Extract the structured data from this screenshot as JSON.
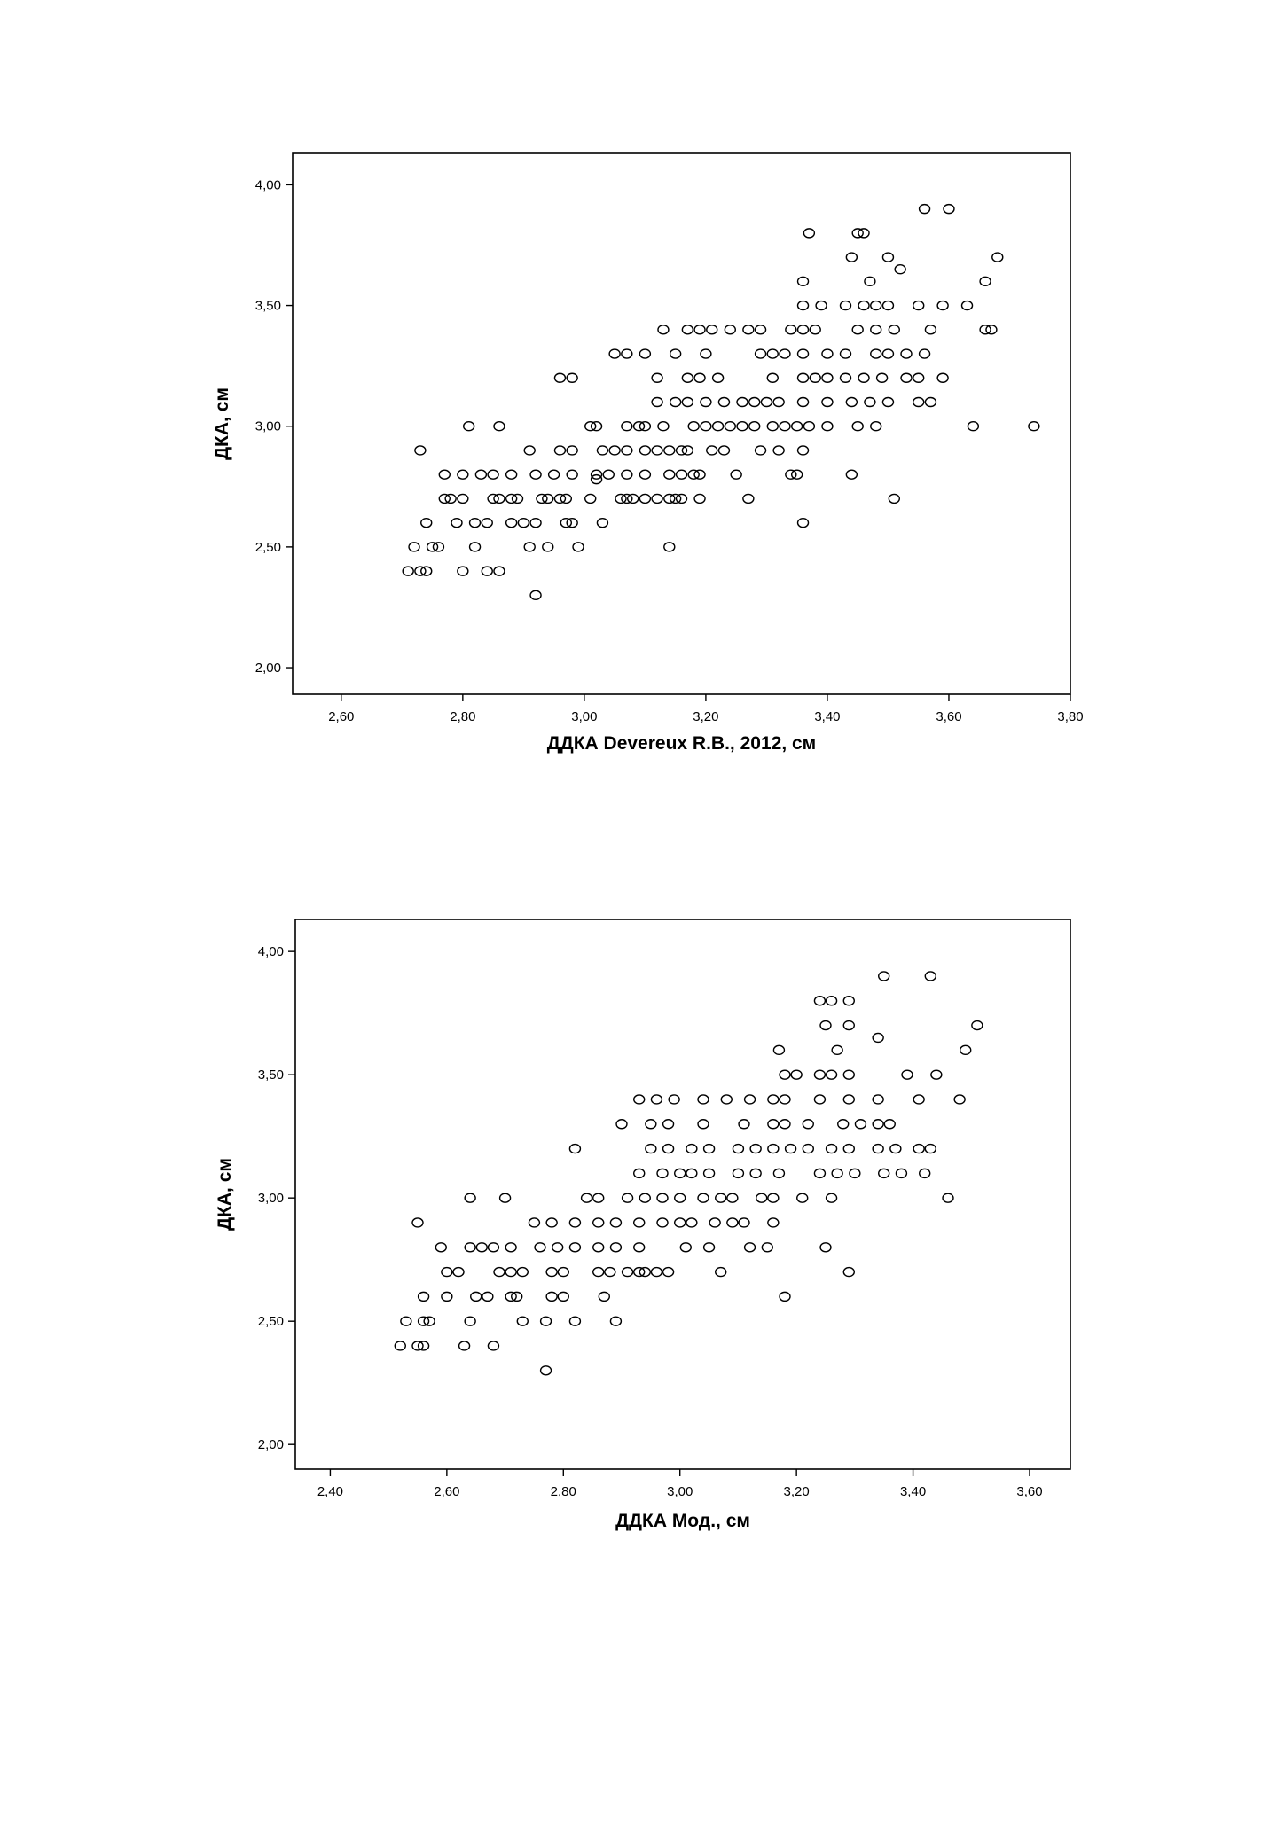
{
  "chart_data": [
    {
      "type": "scatter",
      "title": "",
      "xlabel": "ДДКА Devereux R.B., 2012, см",
      "ylabel": "ДКА, см",
      "xlim": [
        2.52,
        3.8
      ],
      "ylim": [
        1.89,
        4.13
      ],
      "xticks": [
        2.6,
        2.8,
        3.0,
        3.2,
        3.4,
        3.6,
        3.8
      ],
      "xtick_labels": [
        "2,60",
        "2,80",
        "3,00",
        "3,20",
        "3,40",
        "3,60",
        "3,80"
      ],
      "yticks": [
        2.0,
        2.5,
        3.0,
        3.5,
        4.0
      ],
      "ytick_labels": [
        "2,00",
        "2,50",
        "3,00",
        "3,50",
        "4,00"
      ],
      "grid": false,
      "legend": "none",
      "marker": "open-circle",
      "points": [
        [
          2.71,
          2.4
        ],
        [
          2.73,
          2.4
        ],
        [
          2.74,
          2.4
        ],
        [
          2.8,
          2.4
        ],
        [
          2.84,
          2.4
        ],
        [
          2.86,
          2.4
        ],
        [
          2.72,
          2.5
        ],
        [
          2.75,
          2.5
        ],
        [
          2.76,
          2.5
        ],
        [
          2.82,
          2.5
        ],
        [
          2.91,
          2.5
        ],
        [
          2.94,
          2.5
        ],
        [
          2.99,
          2.5
        ],
        [
          3.14,
          2.5
        ],
        [
          2.74,
          2.6
        ],
        [
          2.79,
          2.6
        ],
        [
          2.82,
          2.6
        ],
        [
          2.84,
          2.6
        ],
        [
          2.88,
          2.6
        ],
        [
          2.9,
          2.6
        ],
        [
          2.92,
          2.6
        ],
        [
          2.97,
          2.6
        ],
        [
          2.98,
          2.6
        ],
        [
          3.03,
          2.6
        ],
        [
          3.36,
          2.6
        ],
        [
          2.77,
          2.7
        ],
        [
          2.78,
          2.7
        ],
        [
          2.8,
          2.7
        ],
        [
          2.85,
          2.7
        ],
        [
          2.86,
          2.7
        ],
        [
          2.88,
          2.7
        ],
        [
          2.89,
          2.7
        ],
        [
          2.93,
          2.7
        ],
        [
          2.94,
          2.7
        ],
        [
          2.96,
          2.7
        ],
        [
          2.97,
          2.7
        ],
        [
          3.01,
          2.7
        ],
        [
          3.06,
          2.7
        ],
        [
          3.07,
          2.7
        ],
        [
          3.08,
          2.7
        ],
        [
          3.1,
          2.7
        ],
        [
          3.12,
          2.7
        ],
        [
          3.14,
          2.7
        ],
        [
          3.15,
          2.7
        ],
        [
          3.16,
          2.7
        ],
        [
          3.19,
          2.7
        ],
        [
          3.27,
          2.7
        ],
        [
          3.51,
          2.7
        ],
        [
          2.77,
          2.8
        ],
        [
          2.8,
          2.8
        ],
        [
          2.83,
          2.8
        ],
        [
          2.85,
          2.8
        ],
        [
          2.88,
          2.8
        ],
        [
          2.92,
          2.8
        ],
        [
          2.95,
          2.8
        ],
        [
          2.98,
          2.8
        ],
        [
          3.02,
          2.8
        ],
        [
          3.04,
          2.8
        ],
        [
          3.07,
          2.8
        ],
        [
          3.1,
          2.8
        ],
        [
          3.14,
          2.8
        ],
        [
          3.16,
          2.8
        ],
        [
          3.18,
          2.8
        ],
        [
          3.19,
          2.8
        ],
        [
          3.25,
          2.8
        ],
        [
          3.34,
          2.8
        ],
        [
          3.35,
          2.8
        ],
        [
          3.44,
          2.8
        ],
        [
          2.73,
          2.9
        ],
        [
          2.91,
          2.9
        ],
        [
          2.96,
          2.9
        ],
        [
          2.98,
          2.9
        ],
        [
          3.03,
          2.9
        ],
        [
          3.05,
          2.9
        ],
        [
          3.07,
          2.9
        ],
        [
          3.1,
          2.9
        ],
        [
          3.12,
          2.9
        ],
        [
          3.14,
          2.9
        ],
        [
          3.16,
          2.9
        ],
        [
          3.17,
          2.9
        ],
        [
          3.21,
          2.9
        ],
        [
          3.23,
          2.9
        ],
        [
          3.29,
          2.9
        ],
        [
          3.32,
          2.9
        ],
        [
          3.36,
          2.9
        ],
        [
          2.81,
          3.0
        ],
        [
          2.86,
          3.0
        ],
        [
          3.01,
          3.0
        ],
        [
          3.02,
          3.0
        ],
        [
          3.07,
          3.0
        ],
        [
          3.09,
          3.0
        ],
        [
          3.1,
          3.0
        ],
        [
          3.13,
          3.0
        ],
        [
          3.18,
          3.0
        ],
        [
          3.2,
          3.0
        ],
        [
          3.22,
          3.0
        ],
        [
          3.24,
          3.0
        ],
        [
          3.26,
          3.0
        ],
        [
          3.28,
          3.0
        ],
        [
          3.31,
          3.0
        ],
        [
          3.33,
          3.0
        ],
        [
          3.35,
          3.0
        ],
        [
          3.37,
          3.0
        ],
        [
          3.4,
          3.0
        ],
        [
          3.45,
          3.0
        ],
        [
          3.48,
          3.0
        ],
        [
          3.64,
          3.0
        ],
        [
          3.74,
          3.0
        ],
        [
          3.12,
          3.1
        ],
        [
          3.15,
          3.1
        ],
        [
          3.17,
          3.1
        ],
        [
          3.2,
          3.1
        ],
        [
          3.23,
          3.1
        ],
        [
          3.26,
          3.1
        ],
        [
          3.28,
          3.1
        ],
        [
          3.3,
          3.1
        ],
        [
          3.32,
          3.1
        ],
        [
          3.36,
          3.1
        ],
        [
          3.4,
          3.1
        ],
        [
          3.44,
          3.1
        ],
        [
          3.47,
          3.1
        ],
        [
          3.5,
          3.1
        ],
        [
          3.55,
          3.1
        ],
        [
          3.57,
          3.1
        ],
        [
          2.96,
          3.2
        ],
        [
          2.98,
          3.2
        ],
        [
          3.12,
          3.2
        ],
        [
          3.17,
          3.2
        ],
        [
          3.19,
          3.2
        ],
        [
          3.22,
          3.2
        ],
        [
          3.31,
          3.2
        ],
        [
          3.36,
          3.2
        ],
        [
          3.38,
          3.2
        ],
        [
          3.4,
          3.2
        ],
        [
          3.43,
          3.2
        ],
        [
          3.46,
          3.2
        ],
        [
          3.49,
          3.2
        ],
        [
          3.53,
          3.2
        ],
        [
          3.55,
          3.2
        ],
        [
          3.59,
          3.2
        ],
        [
          3.05,
          3.3
        ],
        [
          3.07,
          3.3
        ],
        [
          3.1,
          3.3
        ],
        [
          3.15,
          3.3
        ],
        [
          3.2,
          3.3
        ],
        [
          3.29,
          3.3
        ],
        [
          3.31,
          3.3
        ],
        [
          3.33,
          3.3
        ],
        [
          3.36,
          3.3
        ],
        [
          3.4,
          3.3
        ],
        [
          3.43,
          3.3
        ],
        [
          3.48,
          3.3
        ],
        [
          3.5,
          3.3
        ],
        [
          3.53,
          3.3
        ],
        [
          3.56,
          3.3
        ],
        [
          3.13,
          3.4
        ],
        [
          3.17,
          3.4
        ],
        [
          3.19,
          3.4
        ],
        [
          3.21,
          3.4
        ],
        [
          3.24,
          3.4
        ],
        [
          3.27,
          3.4
        ],
        [
          3.29,
          3.4
        ],
        [
          3.34,
          3.4
        ],
        [
          3.36,
          3.4
        ],
        [
          3.38,
          3.4
        ],
        [
          3.45,
          3.4
        ],
        [
          3.48,
          3.4
        ],
        [
          3.51,
          3.4
        ],
        [
          3.57,
          3.4
        ],
        [
          3.66,
          3.4
        ],
        [
          3.67,
          3.4
        ],
        [
          3.36,
          3.5
        ],
        [
          3.39,
          3.5
        ],
        [
          3.43,
          3.5
        ],
        [
          3.46,
          3.5
        ],
        [
          3.48,
          3.5
        ],
        [
          3.5,
          3.5
        ],
        [
          3.55,
          3.5
        ],
        [
          3.59,
          3.5
        ],
        [
          3.63,
          3.5
        ],
        [
          3.36,
          3.6
        ],
        [
          3.47,
          3.6
        ],
        [
          3.66,
          3.6
        ],
        [
          3.52,
          3.65
        ],
        [
          3.44,
          3.7
        ],
        [
          3.5,
          3.7
        ],
        [
          3.68,
          3.7
        ],
        [
          3.37,
          3.8
        ],
        [
          3.45,
          3.8
        ],
        [
          3.46,
          3.8
        ],
        [
          3.56,
          3.9
        ],
        [
          3.6,
          3.9
        ],
        [
          2.92,
          2.3
        ],
        [
          3.02,
          2.78
        ]
      ]
    },
    {
      "type": "scatter",
      "title": "",
      "xlabel": "ДДКА Мод., см",
      "ylabel": "ДКА, см",
      "xlim": [
        2.34,
        3.67
      ],
      "ylim": [
        1.9,
        4.13
      ],
      "xticks": [
        2.4,
        2.6,
        2.8,
        3.0,
        3.2,
        3.4,
        3.6
      ],
      "xtick_labels": [
        "2,40",
        "2,60",
        "2,80",
        "3,00",
        "3,20",
        "3,40",
        "3,60"
      ],
      "yticks": [
        2.0,
        2.5,
        3.0,
        3.5,
        4.0
      ],
      "ytick_labels": [
        "2,00",
        "2,50",
        "3,00",
        "3,50",
        "4,00"
      ],
      "grid": false,
      "legend": "none",
      "marker": "open-circle",
      "points": [
        [
          2.52,
          2.4
        ],
        [
          2.55,
          2.4
        ],
        [
          2.56,
          2.4
        ],
        [
          2.63,
          2.4
        ],
        [
          2.68,
          2.4
        ],
        [
          2.53,
          2.5
        ],
        [
          2.56,
          2.5
        ],
        [
          2.57,
          2.5
        ],
        [
          2.64,
          2.5
        ],
        [
          2.73,
          2.5
        ],
        [
          2.77,
          2.5
        ],
        [
          2.82,
          2.5
        ],
        [
          2.89,
          2.5
        ],
        [
          2.56,
          2.6
        ],
        [
          2.6,
          2.6
        ],
        [
          2.65,
          2.6
        ],
        [
          2.67,
          2.6
        ],
        [
          2.71,
          2.6
        ],
        [
          2.72,
          2.6
        ],
        [
          2.78,
          2.6
        ],
        [
          2.8,
          2.6
        ],
        [
          2.87,
          2.6
        ],
        [
          3.18,
          2.6
        ],
        [
          2.6,
          2.7
        ],
        [
          2.62,
          2.7
        ],
        [
          2.69,
          2.7
        ],
        [
          2.71,
          2.7
        ],
        [
          2.73,
          2.7
        ],
        [
          2.78,
          2.7
        ],
        [
          2.8,
          2.7
        ],
        [
          2.86,
          2.7
        ],
        [
          2.88,
          2.7
        ],
        [
          2.91,
          2.7
        ],
        [
          2.93,
          2.7
        ],
        [
          2.94,
          2.7
        ],
        [
          2.96,
          2.7
        ],
        [
          2.98,
          2.7
        ],
        [
          3.07,
          2.7
        ],
        [
          3.29,
          2.7
        ],
        [
          2.59,
          2.8
        ],
        [
          2.64,
          2.8
        ],
        [
          2.66,
          2.8
        ],
        [
          2.68,
          2.8
        ],
        [
          2.71,
          2.8
        ],
        [
          2.76,
          2.8
        ],
        [
          2.79,
          2.8
        ],
        [
          2.82,
          2.8
        ],
        [
          2.86,
          2.8
        ],
        [
          2.89,
          2.8
        ],
        [
          2.93,
          2.8
        ],
        [
          3.01,
          2.8
        ],
        [
          3.05,
          2.8
        ],
        [
          3.12,
          2.8
        ],
        [
          3.15,
          2.8
        ],
        [
          3.25,
          2.8
        ],
        [
          2.55,
          2.9
        ],
        [
          2.75,
          2.9
        ],
        [
          2.78,
          2.9
        ],
        [
          2.82,
          2.9
        ],
        [
          2.86,
          2.9
        ],
        [
          2.89,
          2.9
        ],
        [
          2.93,
          2.9
        ],
        [
          2.97,
          2.9
        ],
        [
          3.0,
          2.9
        ],
        [
          3.02,
          2.9
        ],
        [
          3.06,
          2.9
        ],
        [
          3.09,
          2.9
        ],
        [
          3.11,
          2.9
        ],
        [
          3.16,
          2.9
        ],
        [
          2.64,
          3.0
        ],
        [
          2.7,
          3.0
        ],
        [
          2.84,
          3.0
        ],
        [
          2.86,
          3.0
        ],
        [
          2.91,
          3.0
        ],
        [
          2.94,
          3.0
        ],
        [
          2.97,
          3.0
        ],
        [
          3.0,
          3.0
        ],
        [
          3.04,
          3.0
        ],
        [
          3.07,
          3.0
        ],
        [
          3.09,
          3.0
        ],
        [
          3.14,
          3.0
        ],
        [
          3.16,
          3.0
        ],
        [
          3.21,
          3.0
        ],
        [
          3.26,
          3.0
        ],
        [
          3.46,
          3.0
        ],
        [
          2.93,
          3.1
        ],
        [
          2.97,
          3.1
        ],
        [
          3.0,
          3.1
        ],
        [
          3.02,
          3.1
        ],
        [
          3.05,
          3.1
        ],
        [
          3.1,
          3.1
        ],
        [
          3.13,
          3.1
        ],
        [
          3.17,
          3.1
        ],
        [
          3.24,
          3.1
        ],
        [
          3.27,
          3.1
        ],
        [
          3.3,
          3.1
        ],
        [
          3.35,
          3.1
        ],
        [
          3.38,
          3.1
        ],
        [
          3.42,
          3.1
        ],
        [
          2.82,
          3.2
        ],
        [
          2.95,
          3.2
        ],
        [
          2.98,
          3.2
        ],
        [
          3.02,
          3.2
        ],
        [
          3.05,
          3.2
        ],
        [
          3.1,
          3.2
        ],
        [
          3.13,
          3.2
        ],
        [
          3.16,
          3.2
        ],
        [
          3.19,
          3.2
        ],
        [
          3.22,
          3.2
        ],
        [
          3.26,
          3.2
        ],
        [
          3.29,
          3.2
        ],
        [
          3.34,
          3.2
        ],
        [
          3.37,
          3.2
        ],
        [
          3.41,
          3.2
        ],
        [
          3.43,
          3.2
        ],
        [
          2.9,
          3.3
        ],
        [
          2.95,
          3.3
        ],
        [
          2.98,
          3.3
        ],
        [
          3.04,
          3.3
        ],
        [
          3.11,
          3.3
        ],
        [
          3.16,
          3.3
        ],
        [
          3.18,
          3.3
        ],
        [
          3.22,
          3.3
        ],
        [
          3.28,
          3.3
        ],
        [
          3.31,
          3.3
        ],
        [
          3.34,
          3.3
        ],
        [
          3.36,
          3.3
        ],
        [
          2.93,
          3.4
        ],
        [
          2.96,
          3.4
        ],
        [
          2.99,
          3.4
        ],
        [
          3.04,
          3.4
        ],
        [
          3.08,
          3.4
        ],
        [
          3.12,
          3.4
        ],
        [
          3.16,
          3.4
        ],
        [
          3.18,
          3.4
        ],
        [
          3.24,
          3.4
        ],
        [
          3.29,
          3.4
        ],
        [
          3.34,
          3.4
        ],
        [
          3.41,
          3.4
        ],
        [
          3.48,
          3.4
        ],
        [
          3.18,
          3.5
        ],
        [
          3.2,
          3.5
        ],
        [
          3.24,
          3.5
        ],
        [
          3.26,
          3.5
        ],
        [
          3.29,
          3.5
        ],
        [
          3.39,
          3.5
        ],
        [
          3.44,
          3.5
        ],
        [
          3.17,
          3.6
        ],
        [
          3.27,
          3.6
        ],
        [
          3.49,
          3.6
        ],
        [
          3.34,
          3.65
        ],
        [
          3.25,
          3.7
        ],
        [
          3.29,
          3.7
        ],
        [
          3.51,
          3.7
        ],
        [
          3.24,
          3.8
        ],
        [
          3.26,
          3.8
        ],
        [
          3.29,
          3.8
        ],
        [
          3.35,
          3.9
        ],
        [
          3.43,
          3.9
        ],
        [
          2.77,
          2.3
        ]
      ]
    }
  ]
}
